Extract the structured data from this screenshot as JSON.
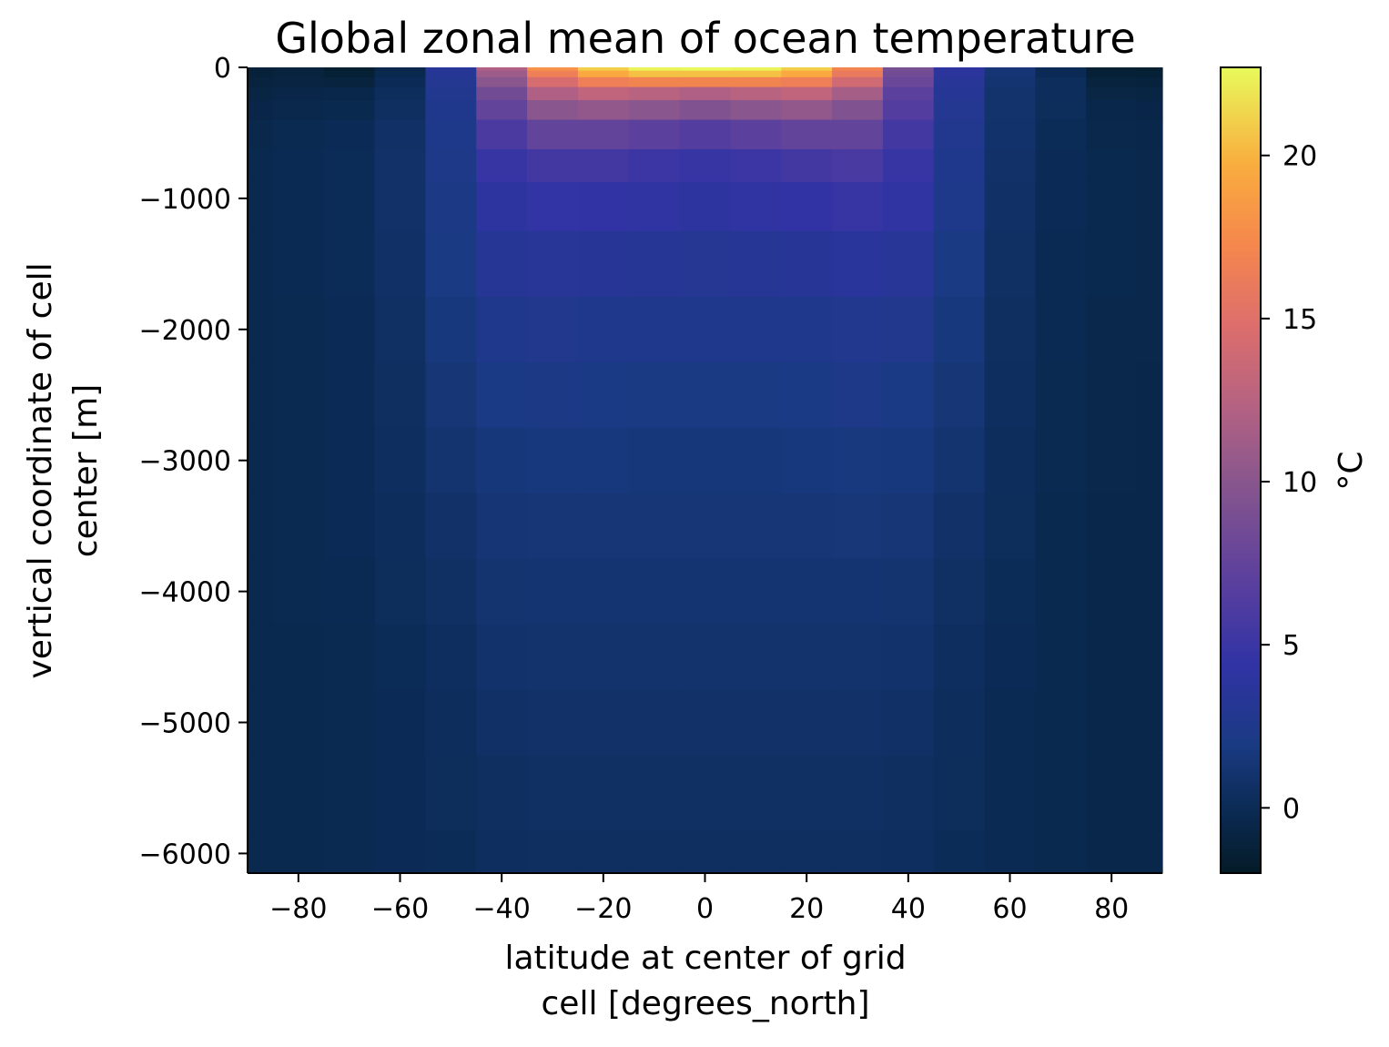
{
  "chart_data": {
    "type": "heatmap",
    "title": "Global zonal mean of ocean temperature",
    "xlabel_lines": [
      "latitude at center of grid",
      "cell [degrees_north]"
    ],
    "ylabel_lines": [
      "vertical coordinate of cell",
      "center [m]"
    ],
    "colorbar_label": "°C",
    "xlim": [
      -90,
      90
    ],
    "ylim": [
      -6150,
      0
    ],
    "clim": [
      -2,
      22.7
    ],
    "colormap": "thermal",
    "x_ticks": [
      -80,
      -60,
      -40,
      -20,
      0,
      20,
      40,
      60,
      80
    ],
    "x_tick_labels": [
      "−80",
      "−60",
      "−40",
      "−20",
      "0",
      "20",
      "40",
      "60",
      "80"
    ],
    "y_ticks": [
      0,
      -1000,
      -2000,
      -3000,
      -4000,
      -5000,
      -6000
    ],
    "y_tick_labels": [
      "0",
      "−1000",
      "−2000",
      "−3000",
      "−4000",
      "−5000",
      "−6000"
    ],
    "colorbar_ticks": [
      0,
      5,
      10,
      15,
      20
    ],
    "colorbar_tick_labels": [
      "0",
      "5",
      "10",
      "15",
      "20"
    ],
    "latitudes": [
      -90,
      -80,
      -70,
      -60,
      -50,
      -40,
      -30,
      -20,
      -10,
      0,
      10,
      20,
      30,
      40,
      50,
      60,
      70,
      80,
      90
    ],
    "depths": [
      0,
      -50,
      -100,
      -200,
      -300,
      -500,
      -750,
      -1000,
      -1500,
      -2000,
      -2500,
      -3000,
      -3500,
      -4000,
      -4500,
      -5000,
      -5500,
      -6150
    ],
    "values": [
      [
        -1.2,
        -1.0,
        -1.6,
        -0.5,
        3.5,
        12.0,
        18.0,
        21.0,
        22.5,
        22.7,
        22.5,
        21.0,
        17.0,
        9.0,
        4.0,
        1.5,
        0.0,
        -1.5,
        -1.6
      ],
      [
        -1.2,
        -1.0,
        -1.4,
        -0.3,
        3.2,
        11.0,
        16.5,
        19.5,
        20.5,
        20.5,
        20.5,
        19.5,
        16.0,
        8.5,
        3.8,
        1.3,
        0.0,
        -1.3,
        -1.4
      ],
      [
        -1.0,
        -0.9,
        -1.0,
        0.0,
        3.0,
        10.0,
        14.5,
        16.5,
        17.0,
        17.0,
        17.0,
        16.5,
        14.0,
        8.0,
        3.5,
        1.2,
        0.2,
        -1.0,
        -1.1
      ],
      [
        -0.8,
        -0.6,
        -0.5,
        0.3,
        2.8,
        8.5,
        12.0,
        13.0,
        12.5,
        12.0,
        12.5,
        13.0,
        11.5,
        7.0,
        3.2,
        1.0,
        0.3,
        -0.7,
        -0.8
      ],
      [
        -0.6,
        -0.4,
        -0.3,
        0.5,
        2.6,
        7.5,
        10.0,
        10.5,
        10.0,
        9.5,
        10.0,
        10.5,
        9.5,
        6.5,
        3.0,
        1.0,
        0.2,
        -0.5,
        -0.6
      ],
      [
        -0.4,
        -0.2,
        0.0,
        0.7,
        2.4,
        6.0,
        7.5,
        7.5,
        7.0,
        6.5,
        7.0,
        7.5,
        7.5,
        5.5,
        2.8,
        0.9,
        0.1,
        -0.4,
        -0.5
      ],
      [
        -0.3,
        -0.1,
        0.1,
        0.8,
        2.3,
        4.8,
        5.5,
        5.5,
        5.0,
        4.8,
        5.0,
        5.5,
        5.8,
        4.8,
        2.6,
        0.8,
        0.0,
        -0.3,
        -0.4
      ],
      [
        -0.3,
        -0.1,
        0.1,
        0.8,
        2.2,
        4.0,
        4.5,
        4.4,
        4.2,
        4.0,
        4.2,
        4.4,
        4.8,
        4.2,
        2.4,
        0.7,
        0.0,
        -0.3,
        -0.4
      ],
      [
        -0.3,
        -0.1,
        0.1,
        0.7,
        2.0,
        3.2,
        3.4,
        3.3,
        3.2,
        3.1,
        3.2,
        3.3,
        3.6,
        3.4,
        2.0,
        0.6,
        -0.1,
        -0.3,
        -0.4
      ],
      [
        -0.3,
        -0.2,
        0.0,
        0.6,
        1.7,
        2.6,
        2.7,
        2.6,
        2.5,
        2.5,
        2.5,
        2.6,
        2.8,
        2.7,
        1.7,
        0.5,
        -0.1,
        -0.4,
        -0.4
      ],
      [
        -0.3,
        -0.2,
        0.0,
        0.5,
        1.4,
        2.1,
        2.2,
        2.1,
        2.0,
        2.0,
        2.0,
        2.1,
        2.3,
        2.1,
        1.4,
        0.4,
        -0.2,
        -0.4,
        -0.5
      ],
      [
        -0.3,
        -0.2,
        0.0,
        0.4,
        1.1,
        1.6,
        1.7,
        1.7,
        1.6,
        1.6,
        1.6,
        1.7,
        1.8,
        1.7,
        1.1,
        0.3,
        -0.2,
        -0.4,
        -0.5
      ],
      [
        -0.3,
        -0.2,
        0.0,
        0.3,
        0.8,
        1.3,
        1.4,
        1.4,
        1.4,
        1.4,
        1.4,
        1.4,
        1.5,
        1.4,
        0.8,
        0.2,
        -0.3,
        -0.5,
        -0.5
      ],
      [
        -0.3,
        -0.2,
        -0.1,
        0.2,
        0.6,
        1.1,
        1.2,
        1.2,
        1.2,
        1.2,
        1.2,
        1.2,
        1.2,
        1.1,
        0.6,
        0.1,
        -0.3,
        -0.5,
        -0.5
      ],
      [
        -0.3,
        -0.3,
        -0.2,
        0.1,
        0.4,
        0.9,
        1.0,
        1.0,
        1.0,
        1.0,
        1.0,
        1.0,
        1.0,
        0.9,
        0.4,
        0.0,
        -0.3,
        -0.5,
        -0.5
      ],
      [
        -0.3,
        -0.3,
        -0.2,
        0.0,
        0.3,
        0.7,
        0.8,
        0.8,
        0.8,
        0.8,
        0.8,
        0.8,
        0.8,
        0.7,
        0.3,
        -0.1,
        -0.3,
        -0.5,
        -0.5
      ],
      [
        -0.3,
        -0.3,
        -0.2,
        0.0,
        0.2,
        0.5,
        0.6,
        0.6,
        0.6,
        0.6,
        0.6,
        0.6,
        0.6,
        0.5,
        0.2,
        -0.1,
        -0.3,
        -0.5,
        -0.5
      ],
      [
        -0.3,
        -0.3,
        -0.2,
        0.0,
        0.1,
        0.4,
        0.5,
        0.5,
        0.5,
        0.5,
        0.5,
        0.5,
        0.5,
        0.4,
        0.1,
        -0.1,
        -0.3,
        -0.5,
        -0.5
      ]
    ]
  }
}
